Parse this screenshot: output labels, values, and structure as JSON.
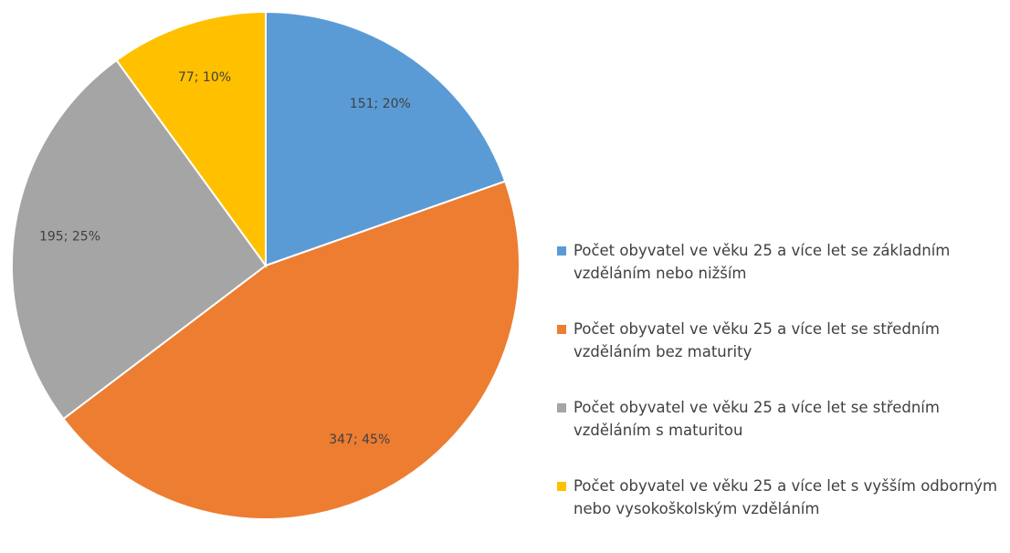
{
  "chart_data": {
    "type": "pie",
    "categories": [
      "Počet obyvatel ve věku 25 a více let se základním vzděláním nebo nižším",
      "Počet obyvatel ve věku 25 a více let se středním vzděláním bez maturity",
      "Počet obyvatel ve věku 25 a více let se středním vzděláním s maturitou",
      "Počet obyvatel ve věku 25 a více let s vyšším odborným nebo vysokoškolským vzděláním"
    ],
    "values": [
      151,
      347,
      195,
      77
    ],
    "value_labels": [
      "151; 20%",
      "347; 45%",
      "195; 25%",
      "77; 10%"
    ],
    "colors": [
      "#5b9bd5",
      "#ed7d31",
      "#a5a5a5",
      "#ffc000"
    ],
    "legend": "right"
  }
}
